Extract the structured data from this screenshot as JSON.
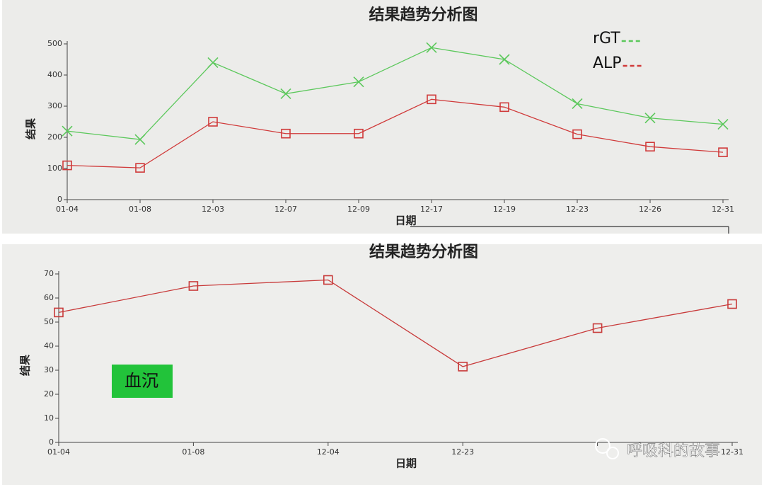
{
  "chart_data": [
    {
      "type": "line",
      "title": "结果趋势分析图",
      "x_label": "日期",
      "y_label": "结果",
      "categories": [
        "01-04",
        "01-08",
        "12-03",
        "12-07",
        "12-09",
        "12-17",
        "12-19",
        "12-23",
        "12-26",
        "12-31"
      ],
      "series": [
        {
          "name": "rGT",
          "color": "#5cc85c",
          "marker": "x",
          "values": [
            220,
            193,
            440,
            340,
            378,
            488,
            450,
            308,
            262,
            242
          ]
        },
        {
          "name": "ALP",
          "color": "#d03a3a",
          "marker": "square",
          "values": [
            110,
            102,
            250,
            212,
            212,
            322,
            297,
            210,
            170,
            152
          ]
        }
      ],
      "ylim": [
        0,
        500
      ],
      "yticks": [
        0,
        100,
        200,
        300,
        400,
        500
      ],
      "grid": false,
      "legend": "upper right"
    },
    {
      "type": "line",
      "title": "结果趋势分析图",
      "x_label": "日期",
      "y_label": "结果",
      "categories": [
        "01-04",
        "01-08",
        "12-04",
        "12-23",
        null,
        "12-31"
      ],
      "series": [
        {
          "color": "#c83a3a",
          "marker": "square",
          "values": [
            54,
            65,
            67.5,
            31.5,
            47.5,
            57.5
          ]
        }
      ],
      "ylim": [
        0,
        70
      ],
      "yticks": [
        0,
        10,
        20,
        30,
        40,
        50,
        60,
        70
      ],
      "grid": false,
      "annotation": "血沉"
    }
  ],
  "watermark": "呼吸科的故事"
}
